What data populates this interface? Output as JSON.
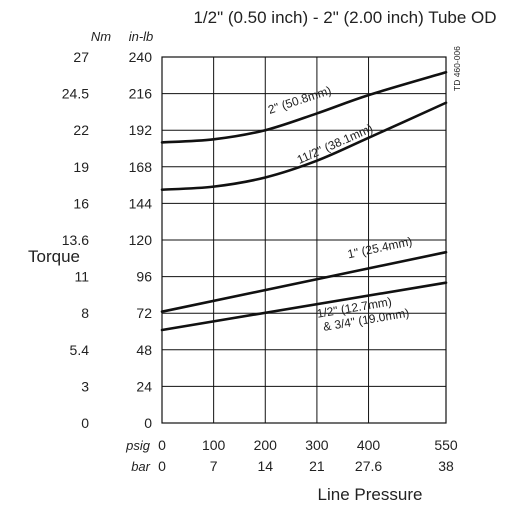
{
  "chart_data": {
    "type": "line",
    "title": "1/2\" (0.50 inch) - 2\" (2.00 inch) Tube OD",
    "doc_id": "TD 460-006",
    "xlabel": "Line Pressure",
    "ylabel": "Torque",
    "x_unit_primary": "psig",
    "x_unit_secondary": "bar",
    "y_unit_primary": "in-lb",
    "y_unit_secondary": "Nm",
    "xlim": [
      0,
      550
    ],
    "ylim": [
      0,
      240
    ],
    "x_ticks": [
      {
        "psig": 0,
        "psig_label": "0",
        "bar_label": "0"
      },
      {
        "psig": 100,
        "psig_label": "100",
        "bar_label": "7"
      },
      {
        "psig": 200,
        "psig_label": "200",
        "bar_label": "14"
      },
      {
        "psig": 300,
        "psig_label": "300",
        "bar_label": "21"
      },
      {
        "psig": 400,
        "psig_label": "400",
        "bar_label": "27.6"
      },
      {
        "psig": 550,
        "psig_label": "550",
        "bar_label": "38"
      }
    ],
    "y_ticks": [
      {
        "inlb": 0,
        "inlb_label": "0",
        "nm_label": "0"
      },
      {
        "inlb": 24,
        "inlb_label": "24",
        "nm_label": "3"
      },
      {
        "inlb": 48,
        "inlb_label": "48",
        "nm_label": "5.4"
      },
      {
        "inlb": 72,
        "inlb_label": "72",
        "nm_label": "8"
      },
      {
        "inlb": 96,
        "inlb_label": "96",
        "nm_label": "11"
      },
      {
        "inlb": 120,
        "inlb_label": "120",
        "nm_label": "13.6"
      },
      {
        "inlb": 144,
        "inlb_label": "144",
        "nm_label": "16"
      },
      {
        "inlb": 168,
        "inlb_label": "168",
        "nm_label": "19"
      },
      {
        "inlb": 192,
        "inlb_label": "192",
        "nm_label": "22"
      },
      {
        "inlb": 216,
        "inlb_label": "216",
        "nm_label": "24.5"
      },
      {
        "inlb": 240,
        "inlb_label": "240",
        "nm_label": "27"
      }
    ],
    "grid": true,
    "series": [
      {
        "name": "2\" (50.8mm)",
        "label_lines": [
          "2\" (50.8mm)"
        ],
        "x": [
          0,
          100,
          200,
          300,
          400,
          550
        ],
        "y": [
          184,
          186,
          192,
          203,
          215,
          230
        ]
      },
      {
        "name": "11/2\" (38.1mm)",
        "label_lines": [
          "11/2\" (38.1mm)"
        ],
        "x": [
          0,
          100,
          200,
          300,
          400,
          550
        ],
        "y": [
          153,
          155,
          161,
          172,
          187,
          210
        ]
      },
      {
        "name": "1\" (25.4mm)",
        "label_lines": [
          "1\" (25.4mm)"
        ],
        "x": [
          0,
          550
        ],
        "y": [
          73,
          112
        ]
      },
      {
        "name": "1/2\" (12.7mm) & 3/4\" (19.0mm)",
        "label_lines": [
          "1/2\" (12.7mm)",
          "& 3/4\" (19.0mm)"
        ],
        "x": [
          0,
          550
        ],
        "y": [
          61,
          92
        ]
      }
    ]
  }
}
